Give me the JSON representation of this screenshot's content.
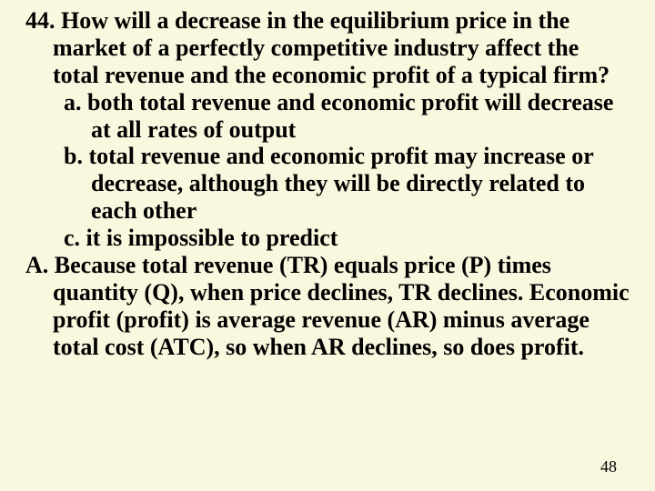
{
  "slide": {
    "background_color": "#faf7df",
    "text_color": "#000000",
    "font_family": "Times New Roman",
    "font_size_pt": 26,
    "font_weight": "bold",
    "question_number": "44.",
    "question": "44. How will a decrease in the equilibrium price in the market of a perfectly competitive industry affect the total revenue and the economic profit of a typical firm?",
    "options": {
      "a": "a. both total revenue and economic profit will decrease at all rates of output",
      "b": "b. total revenue and economic profit may increase or decrease, although they will be directly related to each other",
      "c": "c. it is impossible to predict"
    },
    "answer_label": "A.",
    "answer": "A.  Because total revenue (TR) equals price (P) times quantity (Q), when price declines, TR declines. Economic profit (profit) is average revenue (AR) minus average total cost (ATC), so when AR declines, so does profit.",
    "page_number": "48"
  }
}
